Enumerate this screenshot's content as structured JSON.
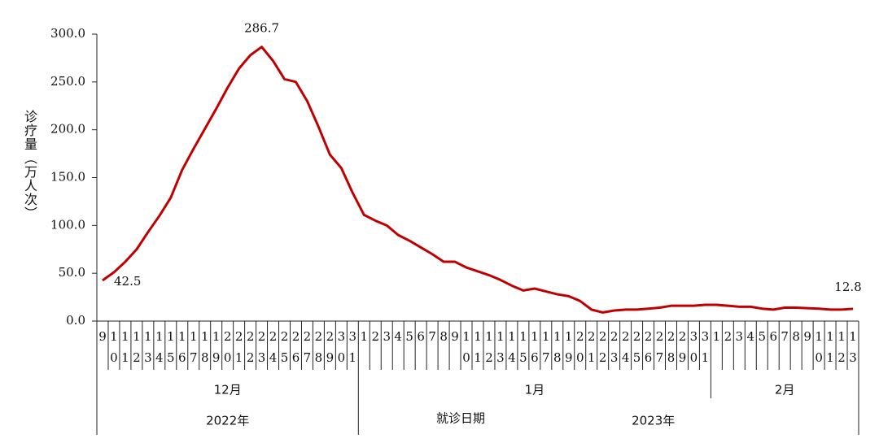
{
  "chart_data": {
    "type": "line",
    "y_label": "诊疗量（万人次）",
    "x_label": "就诊日期",
    "categories": [
      "9",
      "10",
      "11",
      "12",
      "13",
      "14",
      "15",
      "16",
      "17",
      "18",
      "19",
      "20",
      "21",
      "22",
      "23",
      "24",
      "25",
      "26",
      "27",
      "28",
      "29",
      "30",
      "31",
      "1",
      "2",
      "3",
      "4",
      "5",
      "6",
      "7",
      "8",
      "9",
      "10",
      "11",
      "12",
      "13",
      "14",
      "15",
      "16",
      "17",
      "18",
      "19",
      "20",
      "21",
      "22",
      "23",
      "24",
      "25",
      "26",
      "27",
      "28",
      "29",
      "30",
      "31",
      "1",
      "2",
      "3",
      "4",
      "5",
      "6",
      "7",
      "8",
      "9",
      "10",
      "11",
      "12",
      "13"
    ],
    "month_groups": [
      {
        "label": "2022年",
        "months": [
          "12月"
        ]
      },
      {
        "label": "2023年",
        "months": [
          "1月",
          "2月"
        ]
      }
    ],
    "values": [
      42.5,
      51,
      62,
      75,
      93,
      110,
      129,
      158,
      180,
      201,
      222,
      244,
      264,
      278,
      286.7,
      272,
      253,
      250,
      230,
      203,
      174,
      160,
      134,
      111,
      105,
      100,
      90,
      84,
      77,
      70,
      62,
      62,
      56,
      52,
      48,
      43,
      37,
      32,
      34,
      31,
      28,
      26,
      21,
      12,
      9,
      11,
      12,
      12,
      13,
      14,
      16,
      16,
      16,
      17,
      17,
      16,
      15,
      15,
      13,
      12,
      14,
      14,
      13.5,
      13,
      12,
      12,
      12.8
    ],
    "value_labels": [
      "42.5",
      null,
      null,
      null,
      null,
      null,
      null,
      null,
      null,
      null,
      null,
      null,
      null,
      null,
      "286.7",
      null,
      null,
      null,
      null,
      null,
      null,
      null,
      null,
      null,
      null,
      null,
      null,
      null,
      null,
      null,
      null,
      null,
      null,
      null,
      null,
      null,
      null,
      null,
      null,
      null,
      null,
      null,
      null,
      null,
      null,
      null,
      null,
      null,
      null,
      null,
      null,
      null,
      null,
      null,
      null,
      null,
      null,
      null,
      null,
      null,
      null,
      null,
      null,
      null,
      null,
      null,
      "12.8"
    ],
    "color": "#c00000",
    "ylim": [
      0,
      300
    ],
    "yticks": [
      {
        "value": 0,
        "label": "0.0"
      },
      {
        "value": 50,
        "label": "50.0"
      },
      {
        "value": 100,
        "label": "100.0"
      },
      {
        "value": 150,
        "label": "150.0"
      },
      {
        "value": 200,
        "label": "200.0"
      },
      {
        "value": 250,
        "label": "250.0"
      },
      {
        "value": 300,
        "label": "300.0"
      }
    ],
    "grid": false
  }
}
